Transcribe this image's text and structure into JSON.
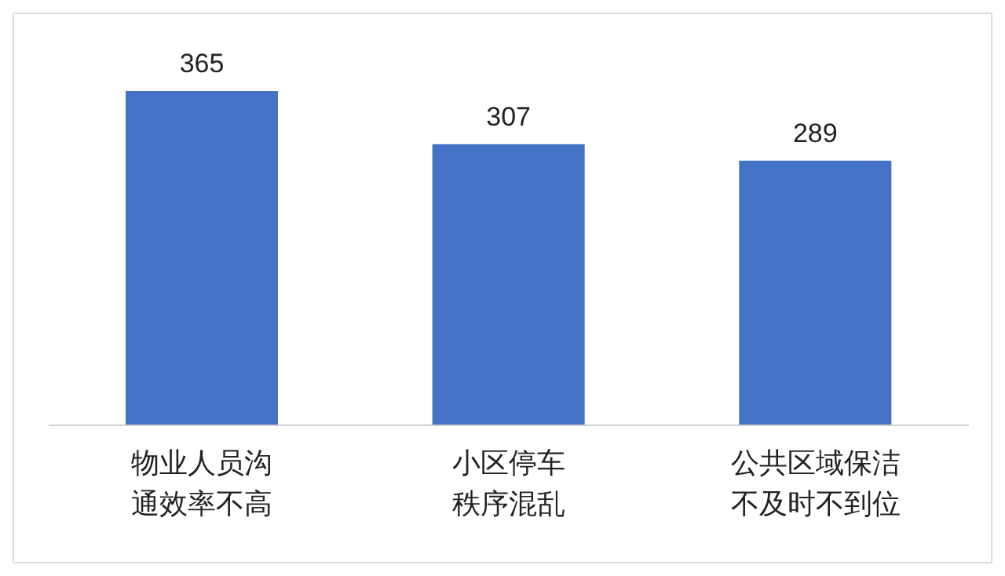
{
  "chart_data": {
    "type": "bar",
    "categories": [
      "物业人员沟通效率不高",
      "小区停车秩序混乱",
      "公共区域保洁不及时不到位"
    ],
    "values": [
      365,
      307,
      289
    ],
    "color": "#4472c4",
    "data_labels": true,
    "grid": false,
    "legend": false
  }
}
